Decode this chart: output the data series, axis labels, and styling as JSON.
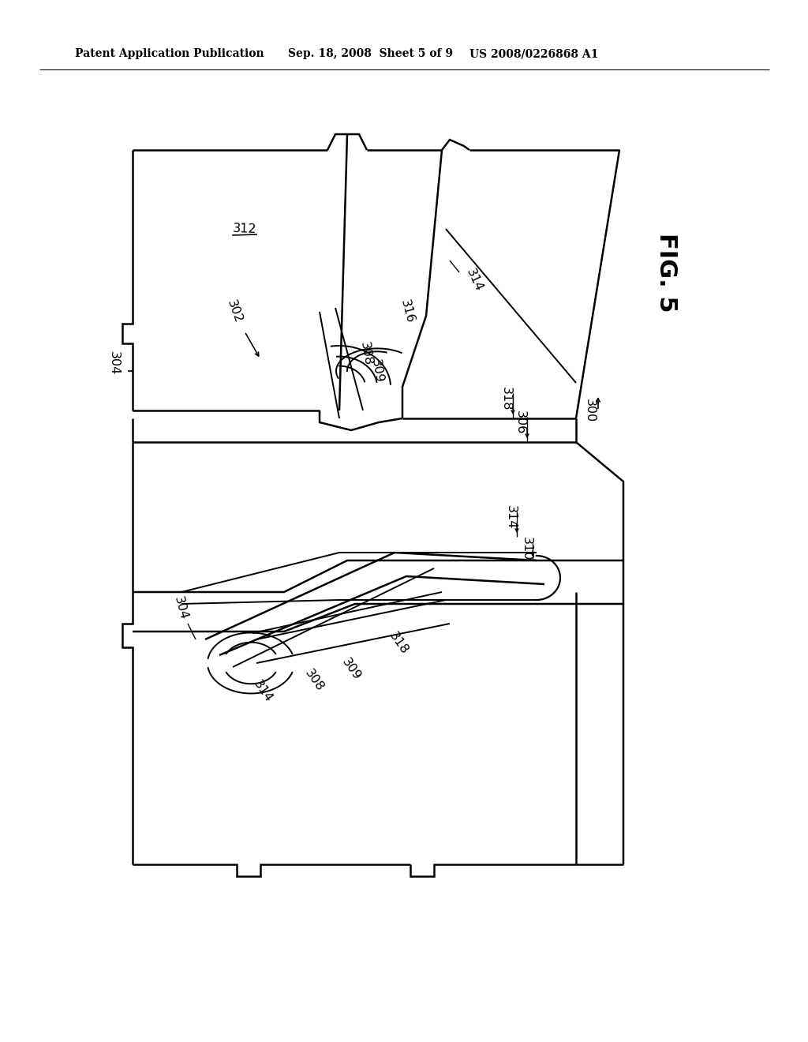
{
  "header_left": "Patent Application Publication",
  "header_mid": "Sep. 18, 2008  Sheet 5 of 9",
  "header_right": "US 2008/0226868 A1",
  "fig_label": "FIG. 5",
  "background_color": "#ffffff"
}
